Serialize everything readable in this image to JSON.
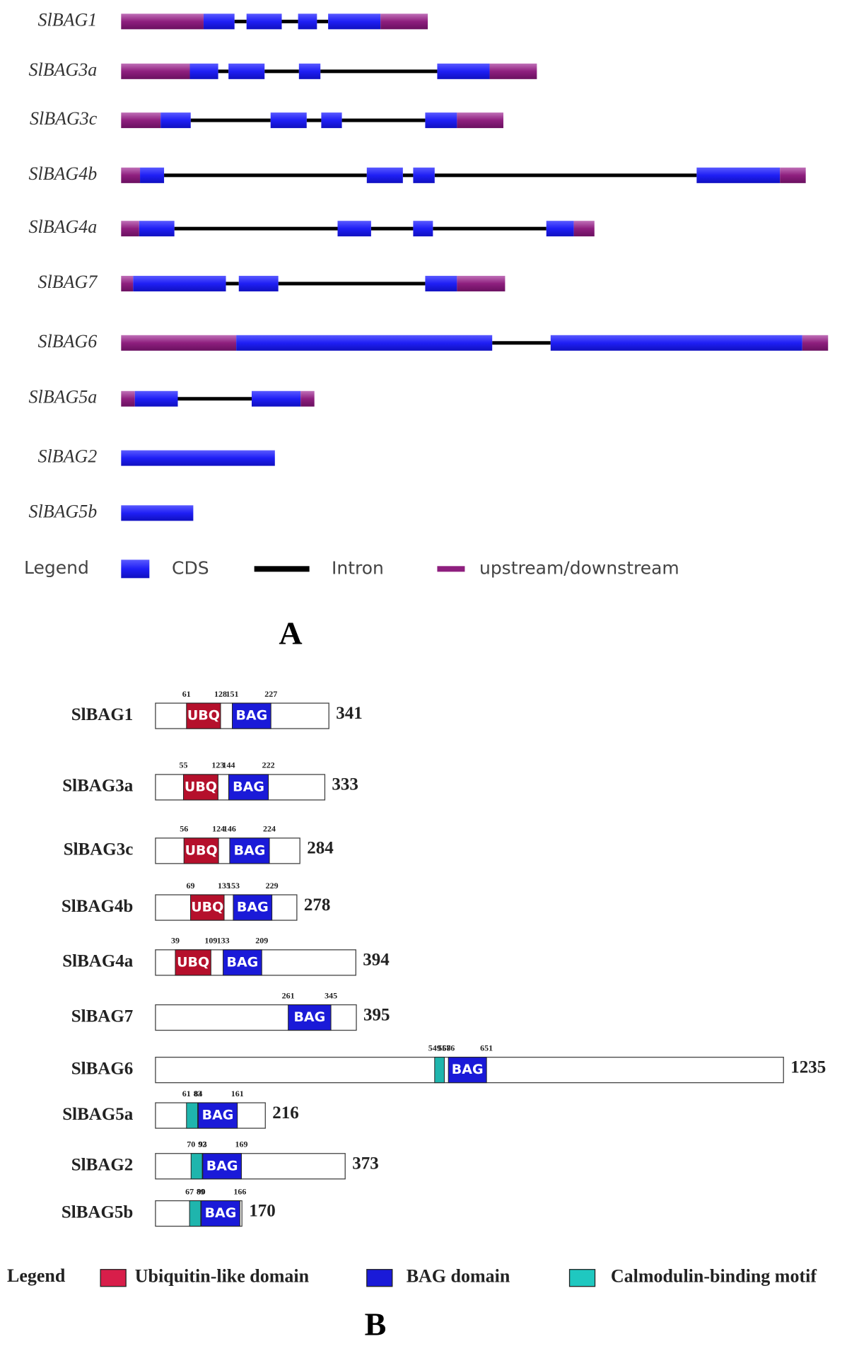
{
  "panel_a": {
    "label": "A",
    "genes": [
      "SlBAG1",
      "SlBAG3a",
      "SlBAG3c",
      "SlBAG4b",
      "SlBAG4a",
      "SlBAG7",
      "SlBAG6",
      "SlBAG5a",
      "SlBAG2",
      "SlBAG5b"
    ],
    "legend": {
      "title": "Legend",
      "items": [
        {
          "label": "CDS",
          "color": "#1f1ff5"
        },
        {
          "label": "Intron",
          "color": "#000000"
        },
        {
          "label": "upstream/downstream",
          "color": "#8e1f7e"
        }
      ]
    }
  },
  "panel_b": {
    "label": "B",
    "proteins": [
      {
        "name": "SlBAG1",
        "length": 341,
        "domains": [
          {
            "label": "UBQ",
            "start": 61,
            "end": 128,
            "color": "#b5102c"
          },
          {
            "label": "BAG",
            "start": 151,
            "end": 227,
            "color": "#1a1ad8"
          }
        ]
      },
      {
        "name": "SlBAG3a",
        "length": 333,
        "domains": [
          {
            "label": "UBQ",
            "start": 55,
            "end": 123,
            "color": "#b5102c"
          },
          {
            "label": "BAG",
            "start": 144,
            "end": 222,
            "color": "#1a1ad8"
          }
        ]
      },
      {
        "name": "SlBAG3c",
        "length": 284,
        "domains": [
          {
            "label": "UBQ",
            "start": 56,
            "end": 124,
            "color": "#b5102c"
          },
          {
            "label": "BAG",
            "start": 146,
            "end": 224,
            "color": "#1a1ad8"
          }
        ]
      },
      {
        "name": "SlBAG4b",
        "length": 278,
        "domains": [
          {
            "label": "UBQ",
            "start": 69,
            "end": 135,
            "color": "#b5102c"
          },
          {
            "label": "BAG",
            "start": 153,
            "end": 229,
            "color": "#1a1ad8"
          }
        ]
      },
      {
        "name": "SlBAG4a",
        "length": 394,
        "domains": [
          {
            "label": "UBQ",
            "start": 39,
            "end": 109,
            "color": "#b5102c"
          },
          {
            "label": "BAG",
            "start": 133,
            "end": 209,
            "color": "#1a1ad8"
          }
        ]
      },
      {
        "name": "SlBAG7",
        "length": 395,
        "domains": [
          {
            "label": "BAG",
            "start": 261,
            "end": 345,
            "color": "#1a1ad8"
          }
        ]
      },
      {
        "name": "SlBAG6",
        "length": 1235,
        "domains": [
          {
            "start": 549,
            "end": 568,
            "color": "#1fb5ad"
          },
          {
            "label": "BAG",
            "start": 576,
            "end": 651,
            "color": "#1a1ad8"
          }
        ]
      },
      {
        "name": "SlBAG5a",
        "length": 216,
        "domains": [
          {
            "start": 61,
            "end": 83,
            "color": "#1fb5ad"
          },
          {
            "label": "BAG",
            "start": 84,
            "end": 161,
            "color": "#1a1ad8"
          }
        ]
      },
      {
        "name": "SlBAG2",
        "length": 373,
        "domains": [
          {
            "start": 70,
            "end": 92,
            "color": "#1fb5ad"
          },
          {
            "label": "BAG",
            "start": 93,
            "end": 169,
            "color": "#1a1ad8"
          }
        ]
      },
      {
        "name": "SlBAG5b",
        "length": 170,
        "domains": [
          {
            "start": 67,
            "end": 89,
            "color": "#1fb5ad"
          },
          {
            "label": "BAG",
            "start": 90,
            "end": 166,
            "color": "#1a1ad8"
          }
        ]
      }
    ],
    "legend": {
      "title": "Legend",
      "items": [
        {
          "label": "Ubiquitin-like domain",
          "color": "#d81e4a"
        },
        {
          "label": "BAG domain",
          "color": "#1a1ad8"
        },
        {
          "label": "Calmodulin-binding motif",
          "color": "#1fc8c0"
        }
      ]
    }
  }
}
